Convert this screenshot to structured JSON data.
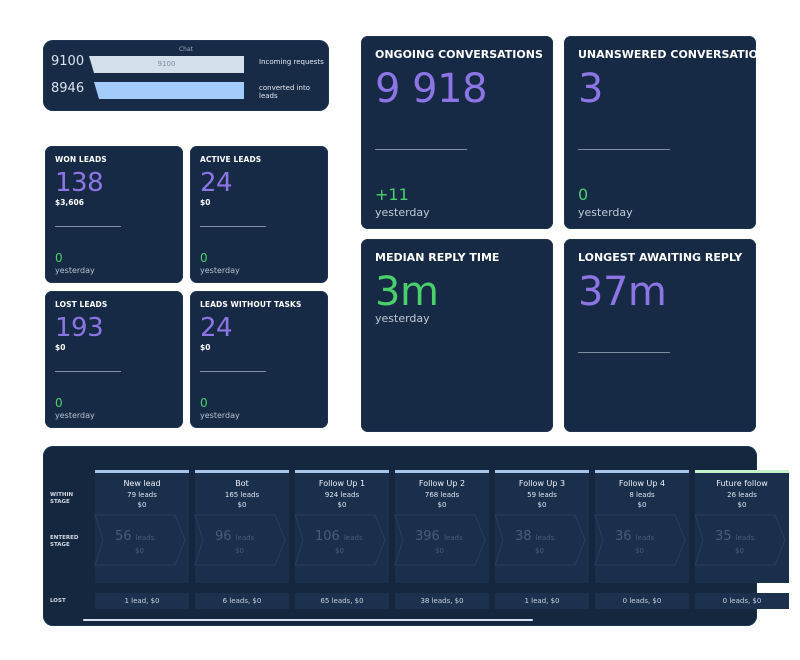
{
  "chat": {
    "title": "Chat",
    "rows": [
      {
        "number": "9100",
        "bar_label": "9100",
        "description": "Incoming requests"
      },
      {
        "number": "8946",
        "bar_label": "",
        "description": "converted into leads"
      }
    ],
    "colors": {
      "bar_light": "#d3dfea",
      "bar_blue": "#a3ccfb"
    }
  },
  "small_cards": [
    {
      "title": "WON LEADS",
      "value": "138",
      "sub": "$3,606",
      "delta": "0",
      "period": "yesterday"
    },
    {
      "title": "ACTIVE LEADS",
      "value": "24",
      "sub": "$0",
      "delta": "0",
      "period": "yesterday"
    },
    {
      "title": "LOST LEADS",
      "value": "193",
      "sub": "$0",
      "delta": "0",
      "period": "yesterday"
    },
    {
      "title": "LEADS WITHOUT TASKS",
      "value": "24",
      "sub": "$0",
      "delta": "0",
      "period": "yesterday"
    }
  ],
  "big_cards": [
    {
      "title": "ONGOING CONVERSATIONS",
      "value": "9 918",
      "delta": "+11",
      "period": "yesterday"
    },
    {
      "title": "UNANSWERED CONVERSATIO",
      "value": "3",
      "delta": "0",
      "period": "yesterday"
    },
    {
      "title": "MEDIAN REPLY TIME",
      "value": "3m",
      "period": "yesterday"
    },
    {
      "title": "LONGEST AWAITING REPLY",
      "value": "37m"
    }
  ],
  "pipeline": {
    "row_labels": {
      "within": [
        "WITHIN",
        "STAGE"
      ],
      "entered": [
        "ENTERED",
        "STAGE"
      ],
      "lost": "LOST"
    },
    "stages": [
      {
        "name": "New lead",
        "leads": "79 leads",
        "sum": "$0",
        "entered": "56",
        "entered_unit": "leads",
        "entered_sum": "$0",
        "lost": "1 lead, $0",
        "color": "#a7c6ea"
      },
      {
        "name": "Bot",
        "leads": "165 leads",
        "sum": "$0",
        "entered": "96",
        "entered_unit": "leads",
        "entered_sum": "$0",
        "lost": "6 leads, $0",
        "color": "#a7c6ea"
      },
      {
        "name": "Follow Up 1",
        "leads": "924 leads",
        "sum": "$0",
        "entered": "106",
        "entered_unit": "leads",
        "entered_sum": "$0",
        "lost": "65 leads, $0",
        "color": "#a7c6ea"
      },
      {
        "name": "Follow Up 2",
        "leads": "768 leads",
        "sum": "$0",
        "entered": "396",
        "entered_unit": "leads",
        "entered_sum": "$0",
        "lost": "38 leads, $0",
        "color": "#a7c6ea"
      },
      {
        "name": "Follow Up 3",
        "leads": "59 leads",
        "sum": "$0",
        "entered": "38",
        "entered_unit": "leads",
        "entered_sum": "$0",
        "lost": "1 lead, $0",
        "color": "#a7c6ea"
      },
      {
        "name": "Follow Up 4",
        "leads": "8 leads",
        "sum": "$0",
        "entered": "36",
        "entered_unit": "leads",
        "entered_sum": "$0",
        "lost": "0 leads, $0",
        "color": "#a7c6ea"
      },
      {
        "name": "Future follow",
        "leads": "26 leads",
        "sum": "$0",
        "entered": "35",
        "entered_unit": "leads",
        "entered_sum": "$0",
        "lost": "0 leads, $0",
        "color": "#c4f3cc"
      }
    ]
  },
  "colors": {
    "card_bg": "#162a45",
    "accent_purple": "#8d75e6",
    "accent_green": "#49d06b",
    "text_white": "#ffffff"
  }
}
